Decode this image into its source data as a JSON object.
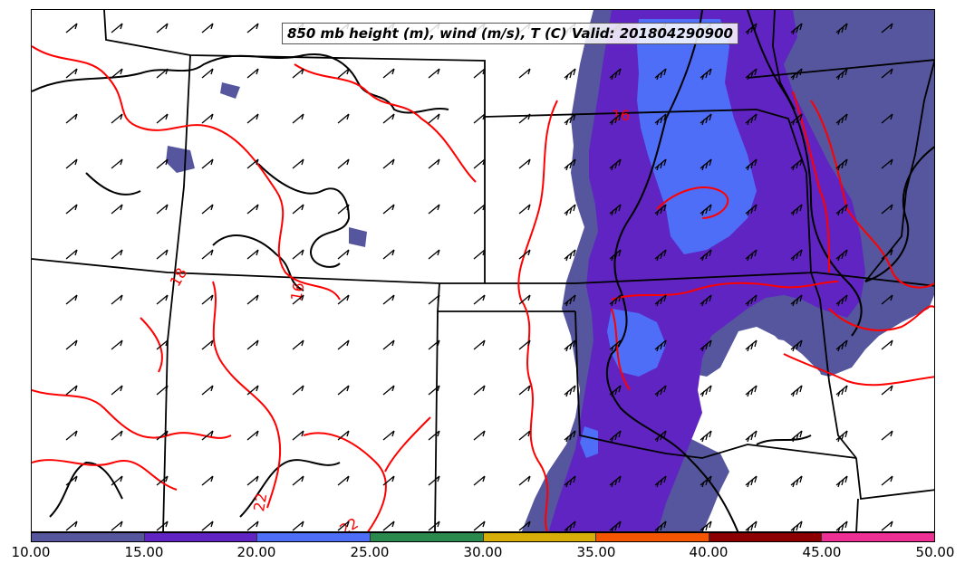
{
  "title": "850 mb height (m), wind (m/s), T (C) Valid: 201804290900",
  "contour_labels": {
    "t18": "18",
    "t16": "16",
    "t22a": "22",
    "t22b": "22",
    "t16b": "16"
  },
  "colorbar": {
    "ticks": [
      "10.00",
      "15.00",
      "20.00",
      "25.00",
      "30.00",
      "35.00",
      "40.00",
      "45.00",
      "50.00"
    ],
    "colors": [
      "#55569d",
      "#6024c2",
      "#4f6ef8",
      "#2a8a4e",
      "#d7ae07",
      "#f35500",
      "#8c0000",
      "#ee2f94"
    ]
  },
  "colors": {
    "wind_10_15": "#55569d",
    "wind_15_20": "#6024c2",
    "wind_20_25": "#4f6ef8",
    "temperature_contour": "#ff0000",
    "height_contour": "#000000"
  }
}
